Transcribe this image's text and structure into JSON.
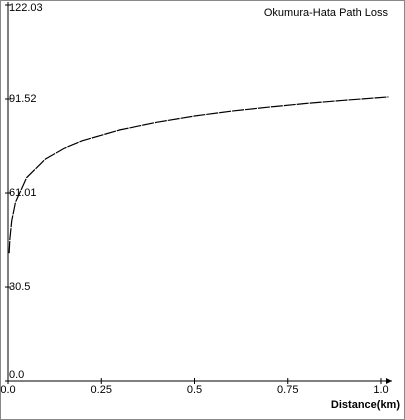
{
  "chart_data": {
    "type": "line",
    "title": "Okumura-Hata  Path Loss",
    "x_label": "Distance(km)",
    "x": [
      0.003,
      0.005,
      0.01,
      0.02,
      0.05,
      0.1,
      0.15,
      0.2,
      0.3,
      0.4,
      0.5,
      0.6,
      0.7,
      0.8,
      0.9,
      1.0,
      1.02
    ],
    "series": [
      {
        "color": "#000000",
        "values": [
          41.5,
          46,
          52,
          58,
          66,
          72,
          75.5,
          78,
          81.5,
          84,
          86,
          87.6,
          88.9,
          90.1,
          91.1,
          92,
          92.2
        ]
      }
    ],
    "xlim": [
      0,
      1.0
    ],
    "xticks": [
      {
        "value": 0,
        "label": "0.0"
      },
      0.25,
      0.5,
      0.75,
      {
        "value": 1,
        "label": "1.0"
      }
    ],
    "ylim": [
      0,
      122.03
    ],
    "yticks": [
      {
        "value": 0,
        "label": "0.0"
      },
      30.5,
      61.01,
      91.52,
      122.03
    ]
  }
}
